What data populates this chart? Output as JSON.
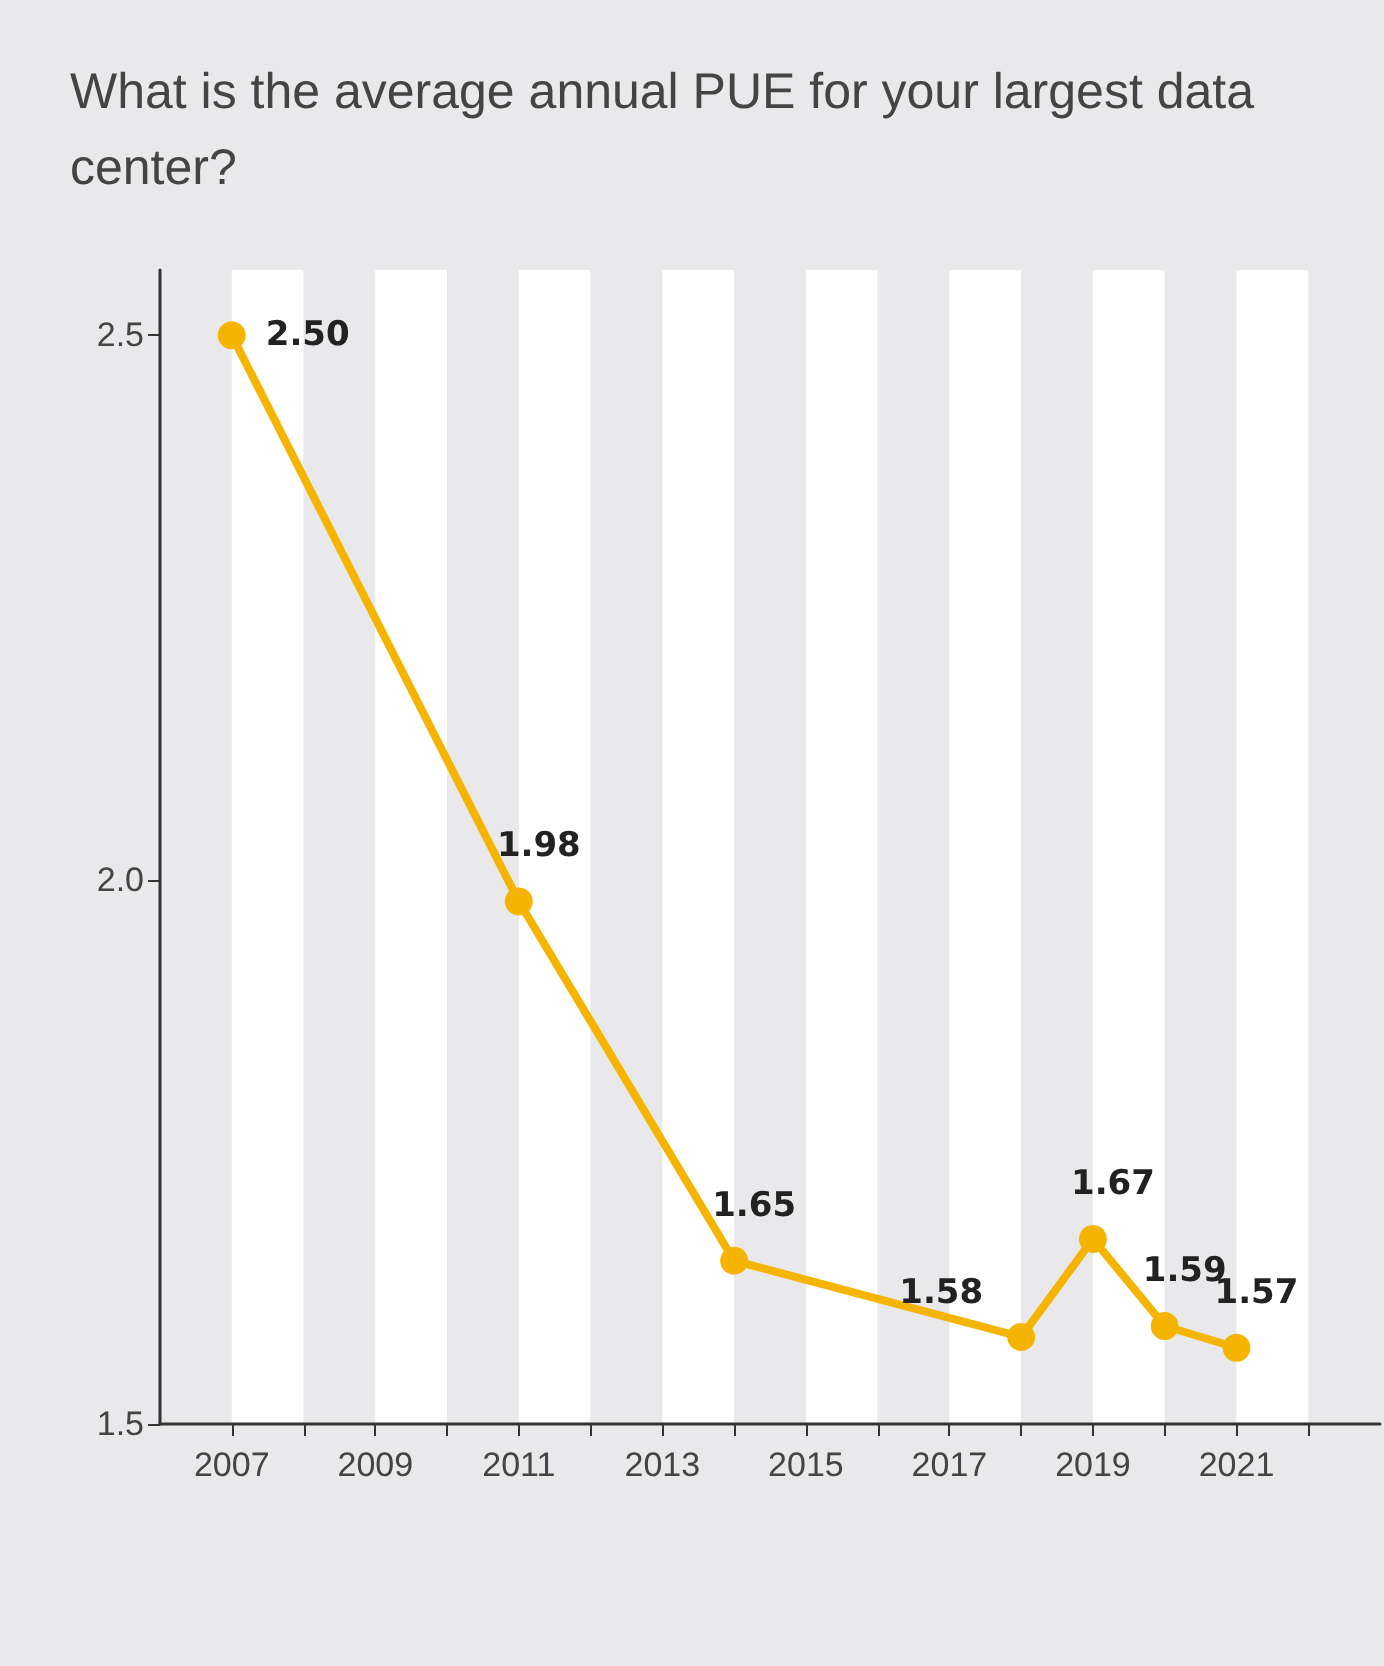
{
  "chart_data": {
    "type": "line",
    "title": "What is the average annual PUE for your largest data center?",
    "x": [
      2007,
      2011,
      2014,
      2018,
      2019,
      2020,
      2021
    ],
    "series": [
      {
        "color": "#f5b400",
        "values": [
          2.5,
          1.98,
          1.65,
          1.58,
          1.67,
          1.59,
          1.57
        ],
        "value_labels": [
          "2.50",
          "1.98",
          "1.65",
          "1.58",
          "1.67",
          "1.59",
          "1.57"
        ]
      }
    ],
    "xlim": [
      2006,
      2023
    ],
    "xticks": [
      2007,
      {
        "value": 2008,
        "label": null
      },
      2009,
      {
        "value": 2010,
        "label": null
      },
      2011,
      {
        "value": 2012,
        "label": null
      },
      2013,
      {
        "value": 2014,
        "label": null
      },
      2015,
      {
        "value": 2016,
        "label": null
      },
      2017,
      {
        "value": 2018,
        "label": null
      },
      2019,
      {
        "value": 2020,
        "label": null
      },
      2021,
      {
        "value": 2022,
        "label": null
      }
    ],
    "ylim": [
      1.5,
      2.56
    ],
    "yticks": [
      {
        "value": 1.5,
        "label": "1.5"
      },
      {
        "value": 2.0,
        "label": "2.0"
      },
      {
        "value": 2.5,
        "label": "2.5"
      }
    ],
    "marker": "circle",
    "line_style": "solid"
  }
}
